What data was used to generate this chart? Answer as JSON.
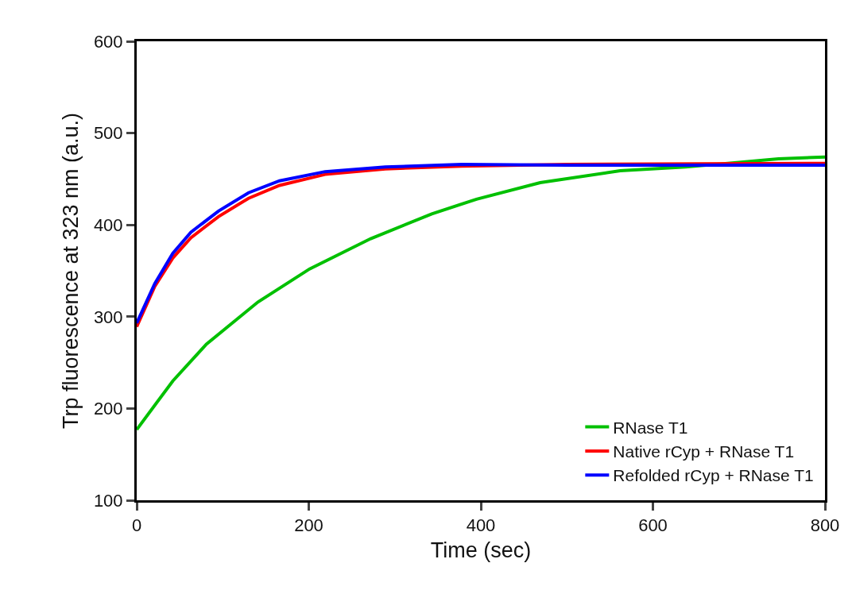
{
  "chart_data": {
    "type": "line",
    "xlabel": "Time (sec)",
    "ylabel": "Trp fluorescence at 323 nm (a.u.)",
    "xlim": [
      0,
      800
    ],
    "xticks": [
      0,
      200,
      400,
      600,
      800
    ],
    "ylim": [
      100,
      600
    ],
    "yticks": [
      100,
      200,
      300,
      400,
      500,
      600
    ],
    "grid": false,
    "legend": "bottom right",
    "marker": "none",
    "line_style": "solid",
    "series": [
      {
        "name": "RNase T1",
        "color": "#00c000",
        "x": [
          0,
          42,
          81,
          141,
          201,
          272,
          343,
          395,
          469,
          562,
          638,
          746,
          800
        ],
        "values": [
          177,
          230,
          270,
          316,
          352,
          385,
          412,
          428,
          446,
          459,
          463,
          472,
          474
        ]
      },
      {
        "name": "Native rCyp + RNase T1",
        "color": "#ff0000",
        "x": [
          0,
          21,
          42,
          63,
          95,
          130,
          166,
          219,
          289,
          378,
          500,
          800
        ],
        "values": [
          289,
          333,
          364,
          386,
          409,
          429,
          443,
          455,
          461,
          464,
          466,
          467
        ]
      },
      {
        "name": "Refolded rCyp + RNase T1",
        "color": "#0000ff",
        "x": [
          0,
          21,
          42,
          63,
          95,
          130,
          166,
          219,
          289,
          378,
          500,
          800
        ],
        "values": [
          293,
          336,
          369,
          392,
          415,
          435,
          448,
          458,
          463,
          466,
          465,
          465
        ]
      }
    ]
  }
}
